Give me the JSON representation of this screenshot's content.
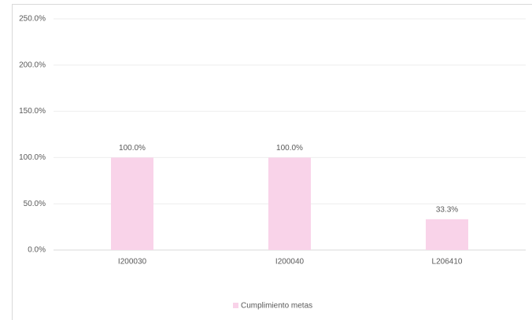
{
  "chart_data": {
    "type": "bar",
    "categories": [
      "I200030",
      "I200040",
      "L206410"
    ],
    "series": [
      {
        "name": "Cumplimiento metas",
        "color": "#f9d3e9",
        "values": [
          100,
          100,
          33.3
        ],
        "value_labels": [
          "100.0%",
          "100.0%",
          "33.3%"
        ]
      }
    ],
    "ylim": [
      0,
      250
    ],
    "yticks": [
      {
        "value": 0,
        "label": "0.0%"
      },
      {
        "value": 50,
        "label": "50.0%"
      },
      {
        "value": 100,
        "label": "100.0%"
      },
      {
        "value": 150,
        "label": "150.0%"
      },
      {
        "value": 200,
        "label": "200.0%"
      },
      {
        "value": 250,
        "label": "250.0%"
      }
    ],
    "grid": true,
    "legend": "bottom"
  }
}
